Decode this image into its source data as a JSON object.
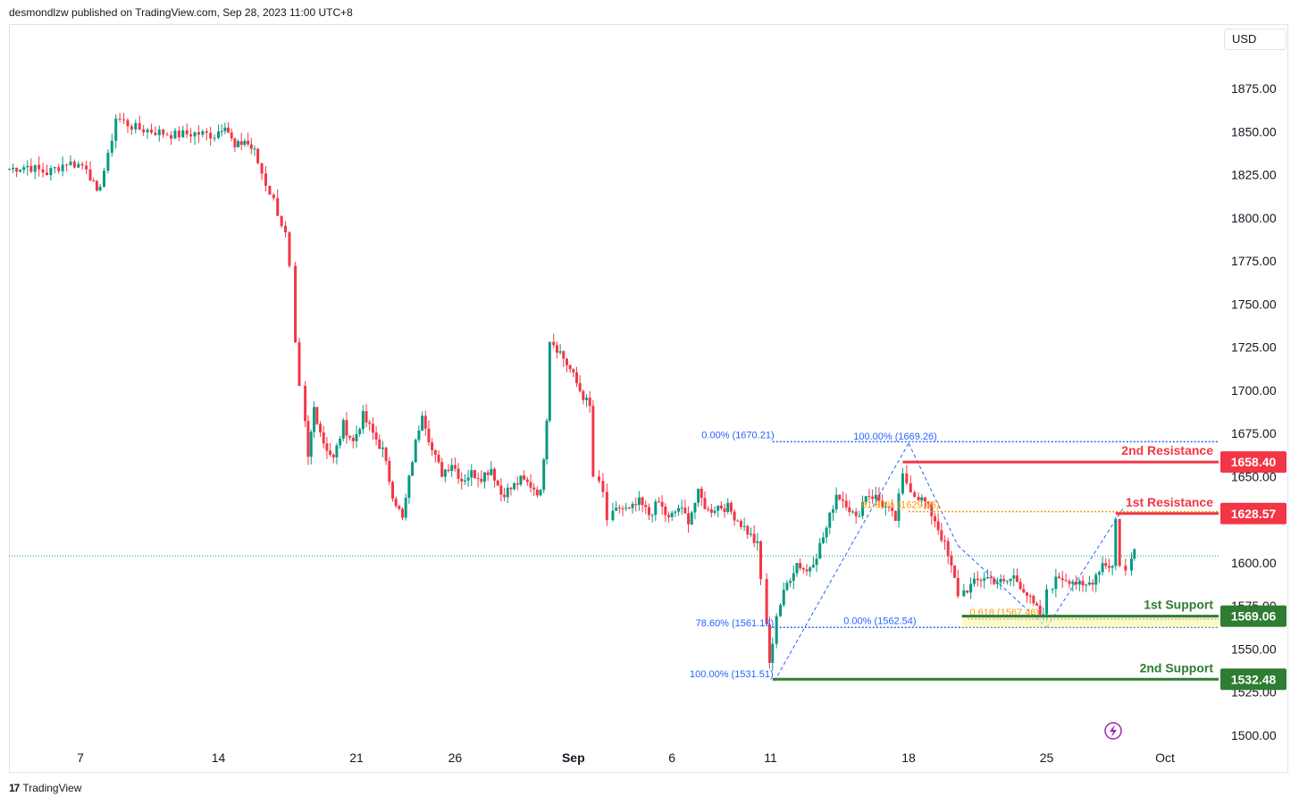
{
  "header": {
    "published_by": "desmondlzw published on TradingView.com, Sep 28, 2023 11:00 UTC+8"
  },
  "currency": "USD",
  "footer": {
    "brand": "TradingView"
  },
  "colors": {
    "up": "#089981",
    "down": "#f23645",
    "resistance": "#f23645",
    "support": "#2e7d32",
    "fib": "#2962ff",
    "fib_orange": "#ff9800",
    "support_fill": "#fff59d"
  },
  "chart_data": {
    "type": "candlestick",
    "title": "",
    "ylim": [
      1490,
      1900
    ],
    "y_ticks": [
      "1875.00",
      "1850.00",
      "1825.00",
      "1800.00",
      "1775.00",
      "1750.00",
      "1725.00",
      "1700.00",
      "1675.00",
      "1650.00",
      "1625.00",
      "1600.00",
      "1575.00",
      "1550.00",
      "1525.00",
      "1500.00"
    ],
    "y_tick_values": [
      1875,
      1850,
      1825,
      1800,
      1775,
      1750,
      1725,
      1700,
      1675,
      1650,
      1625,
      1600,
      1575,
      1550,
      1525,
      1500
    ],
    "x_ticks": [
      {
        "label": "7",
        "day": 7
      },
      {
        "label": "14",
        "day": 14
      },
      {
        "label": "21",
        "day": 21
      },
      {
        "label": "26",
        "day": 26
      },
      {
        "label": "Sep",
        "day": 32
      },
      {
        "label": "6",
        "day": 37
      },
      {
        "label": "11",
        "day": 42
      },
      {
        "label": "18",
        "day": 49
      },
      {
        "label": "25",
        "day": 56
      },
      {
        "label": "Oct",
        "day": 62
      }
    ],
    "x_range_days": [
      3.3,
      65.7
    ],
    "current_price_line": 1604,
    "levels": [
      {
        "name": "2nd Resistance",
        "price": 1658.4,
        "price_label": "1658.40",
        "kind": "resistance",
        "from_day": 48.7
      },
      {
        "name": "1st Resistance",
        "price": 1628.57,
        "price_label": "1628.57",
        "kind": "resistance",
        "from_day": 59.5
      },
      {
        "name": "1st Support",
        "price": 1569.06,
        "price_label": "1569.06",
        "kind": "support",
        "from_day": 51.7
      },
      {
        "name": "2nd Support",
        "price": 1532.48,
        "price_label": "1532.48",
        "kind": "support",
        "from_day": 42.1
      }
    ],
    "fib_labels": [
      {
        "text": "0.00% (1670.21)",
        "price": 1670.21,
        "day": 38.5,
        "color": "fib"
      },
      {
        "text": "100.00% (1669.26)",
        "price": 1669.26,
        "day": 46.2,
        "color": "fib"
      },
      {
        "text": "61.80% (1629.66)",
        "price": 1629.66,
        "day": 46.6,
        "color": "fib_orange"
      },
      {
        "text": "0.618 (1567.46)",
        "price": 1567.46,
        "day": 52.1,
        "color": "fib_orange"
      },
      {
        "text": "78.60% (1561.19)",
        "price": 1561.19,
        "day": 38.2,
        "color": "fib"
      },
      {
        "text": "0.00% (1562.54)",
        "price": 1562.54,
        "day": 45.7,
        "color": "fib"
      },
      {
        "text": "100.00% (1531.51)",
        "price": 1531.51,
        "day": 37.9,
        "color": "fib"
      }
    ],
    "candles_anchor_closes": [
      [
        3.4,
        1828
      ],
      [
        4.5,
        1830
      ],
      [
        5.5,
        1826
      ],
      [
        6.5,
        1832
      ],
      [
        7.5,
        1830
      ],
      [
        8.0,
        1813
      ],
      [
        8.6,
        1835
      ],
      [
        9.0,
        1858
      ],
      [
        10.0,
        1852
      ],
      [
        11.0,
        1850
      ],
      [
        12.0,
        1848
      ],
      [
        13.0,
        1849
      ],
      [
        14.0,
        1848
      ],
      [
        14.5,
        1855
      ],
      [
        15.0,
        1840
      ],
      [
        15.5,
        1845
      ],
      [
        16.0,
        1838
      ],
      [
        16.6,
        1820
      ],
      [
        17.0,
        1810
      ],
      [
        17.6,
        1790
      ],
      [
        17.9,
        1770
      ],
      [
        18.1,
        1725
      ],
      [
        18.4,
        1700
      ],
      [
        18.7,
        1660
      ],
      [
        19.0,
        1690
      ],
      [
        19.5,
        1670
      ],
      [
        20.0,
        1660
      ],
      [
        20.5,
        1680
      ],
      [
        21.0,
        1670
      ],
      [
        21.5,
        1685
      ],
      [
        22.0,
        1675
      ],
      [
        22.5,
        1665
      ],
      [
        23.0,
        1640
      ],
      [
        23.5,
        1625
      ],
      [
        24.0,
        1660
      ],
      [
        24.5,
        1688
      ],
      [
        25.0,
        1665
      ],
      [
        25.5,
        1652
      ],
      [
        26.0,
        1658
      ],
      [
        26.5,
        1648
      ],
      [
        27.0,
        1652
      ],
      [
        27.5,
        1650
      ],
      [
        28.0,
        1655
      ],
      [
        28.5,
        1640
      ],
      [
        29.0,
        1643
      ],
      [
        29.5,
        1648
      ],
      [
        30.0,
        1645
      ],
      [
        30.5,
        1640
      ],
      [
        30.8,
        1685
      ],
      [
        31.0,
        1730
      ],
      [
        31.5,
        1722
      ],
      [
        32.0,
        1712
      ],
      [
        32.5,
        1700
      ],
      [
        33.0,
        1690
      ],
      [
        33.3,
        1650
      ],
      [
        33.7,
        1640
      ],
      [
        34.0,
        1625
      ],
      [
        34.5,
        1632
      ],
      [
        35.0,
        1630
      ],
      [
        35.5,
        1635
      ],
      [
        36.0,
        1628
      ],
      [
        36.5,
        1635
      ],
      [
        37.0,
        1625
      ],
      [
        37.5,
        1632
      ],
      [
        38.0,
        1625
      ],
      [
        38.5,
        1640
      ],
      [
        39.0,
        1630
      ],
      [
        39.5,
        1633
      ],
      [
        40.0,
        1632
      ],
      [
        40.5,
        1625
      ],
      [
        41.0,
        1618
      ],
      [
        41.5,
        1610
      ],
      [
        41.8,
        1590
      ],
      [
        42.1,
        1540
      ],
      [
        42.5,
        1570
      ],
      [
        43.0,
        1588
      ],
      [
        43.5,
        1600
      ],
      [
        44.0,
        1595
      ],
      [
        44.5,
        1605
      ],
      [
        45.0,
        1620
      ],
      [
        45.5,
        1640
      ],
      [
        46.0,
        1635
      ],
      [
        46.5,
        1625
      ],
      [
        47.0,
        1640
      ],
      [
        47.5,
        1638
      ],
      [
        48.0,
        1632
      ],
      [
        48.5,
        1625
      ],
      [
        48.9,
        1650
      ],
      [
        49.5,
        1640
      ],
      [
        50.0,
        1635
      ],
      [
        50.5,
        1625
      ],
      [
        51.0,
        1610
      ],
      [
        51.5,
        1590
      ],
      [
        51.8,
        1582
      ],
      [
        52.5,
        1588
      ],
      [
        53.0,
        1592
      ],
      [
        53.5,
        1590
      ],
      [
        54.0,
        1588
      ],
      [
        54.5,
        1592
      ],
      [
        55.0,
        1585
      ],
      [
        55.5,
        1575
      ],
      [
        56.0,
        1568
      ],
      [
        56.3,
        1585
      ],
      [
        56.8,
        1592
      ],
      [
        57.5,
        1590
      ],
      [
        58.0,
        1585
      ],
      [
        58.5,
        1590
      ],
      [
        59.0,
        1600
      ],
      [
        59.5,
        1598
      ],
      [
        59.7,
        1625
      ],
      [
        60.0,
        1600
      ],
      [
        60.3,
        1595
      ],
      [
        60.6,
        1608
      ]
    ]
  }
}
